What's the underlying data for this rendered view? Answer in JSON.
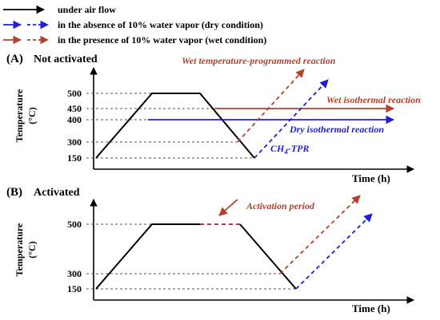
{
  "colors": {
    "black": "#000000",
    "dry": "#1f1fd6",
    "wet": "#b5412b",
    "grid": "#555555"
  },
  "legend": [
    {
      "style": "solid-black",
      "text": "under air flow"
    },
    {
      "style": "dry",
      "text": "in the absence of 10% water vapor (dry condition)"
    },
    {
      "style": "wet",
      "text": "in the presence of 10% water vapor (wet condition)"
    }
  ],
  "panel_a": {
    "label": "(A)",
    "title": "Not activated",
    "ylabel": "Temperature",
    "yunit": "(°C)",
    "xlabel": "Time (h)",
    "ticks": [
      "500",
      "450",
      "400",
      "300",
      "150"
    ],
    "annotations": {
      "wet_tpr": "Wet temperature-programmed reaction",
      "wet_iso": "Wet isothermal reaction",
      "dry_iso": "Dry isothermal reaction",
      "tpr_main": "CH",
      "tpr_sub": "4",
      "tpr_tail": "-TPR"
    }
  },
  "panel_b": {
    "label": "(B)",
    "title": "Activated",
    "ylabel": "Temperature",
    "yunit": "(°C)",
    "xlabel": "Time (h)",
    "ticks": [
      "500",
      "300",
      "150"
    ],
    "annotations": {
      "activation": "Activation period"
    }
  }
}
